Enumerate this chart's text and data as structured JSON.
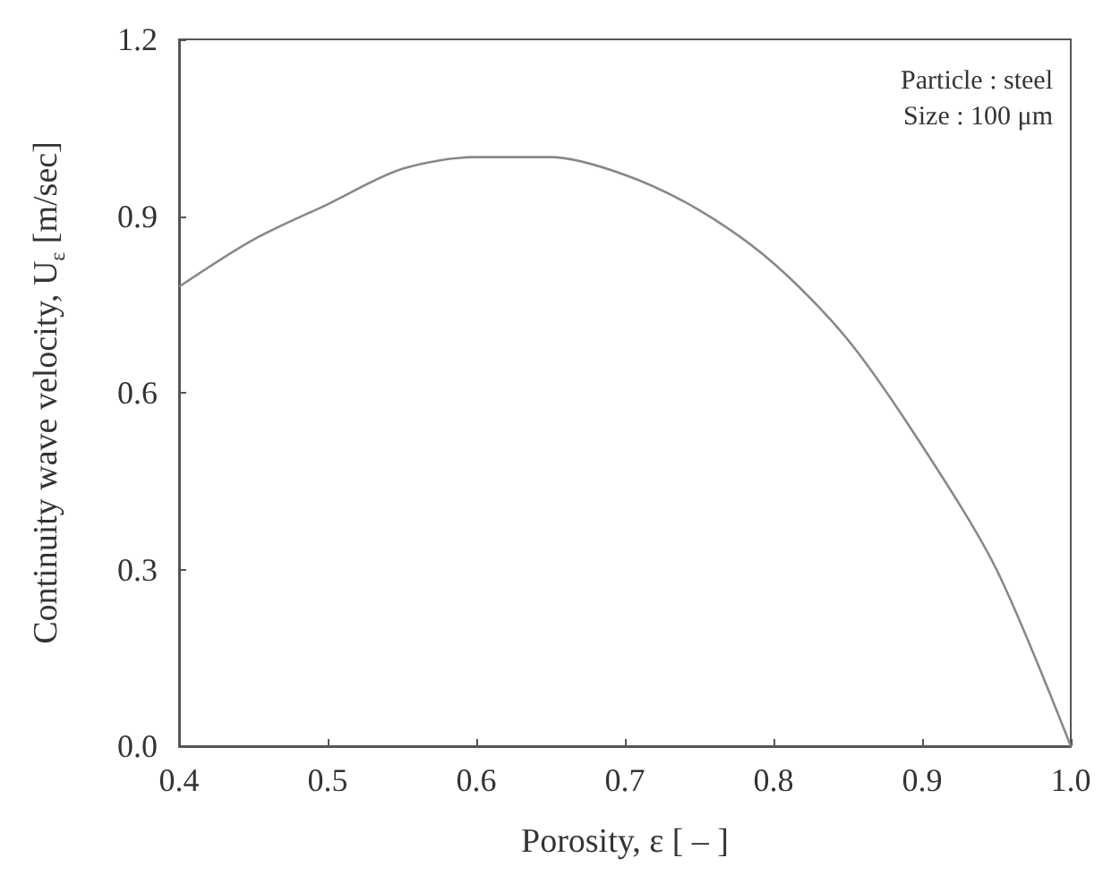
{
  "chart_data": {
    "type": "line",
    "xlabel": "Porosity, ε [ – ]",
    "ylabel": "Continuity wave velocity, U$_{ε}$ [m/sec]",
    "annotations": [
      "Particle : steel",
      "Size : 100 μm"
    ],
    "x": [
      0.4,
      0.45,
      0.5,
      0.55,
      0.6,
      0.625,
      0.65,
      0.7,
      0.75,
      0.8,
      0.85,
      0.9,
      0.95,
      1.0
    ],
    "series": [
      {
        "color": "#888888",
        "values": [
          0.78,
          0.86,
          0.92,
          0.98,
          1.0,
          1.0,
          1.0,
          0.97,
          0.91,
          0.82,
          0.69,
          0.51,
          0.3,
          0.0
        ]
      }
    ],
    "xlim": [
      0.4,
      1.0
    ],
    "xticks": [
      0.4,
      0.5,
      0.6,
      0.7,
      0.8,
      0.9,
      {
        "value": 1,
        "label": "1.0"
      }
    ],
    "ylim": [
      0,
      1.2
    ],
    "yticks": [
      {
        "value": 0,
        "label": "0.0"
      },
      0.3,
      0.6,
      0.9,
      1.2
    ],
    "grid": false,
    "marker": "none",
    "line_style": "solid"
  }
}
